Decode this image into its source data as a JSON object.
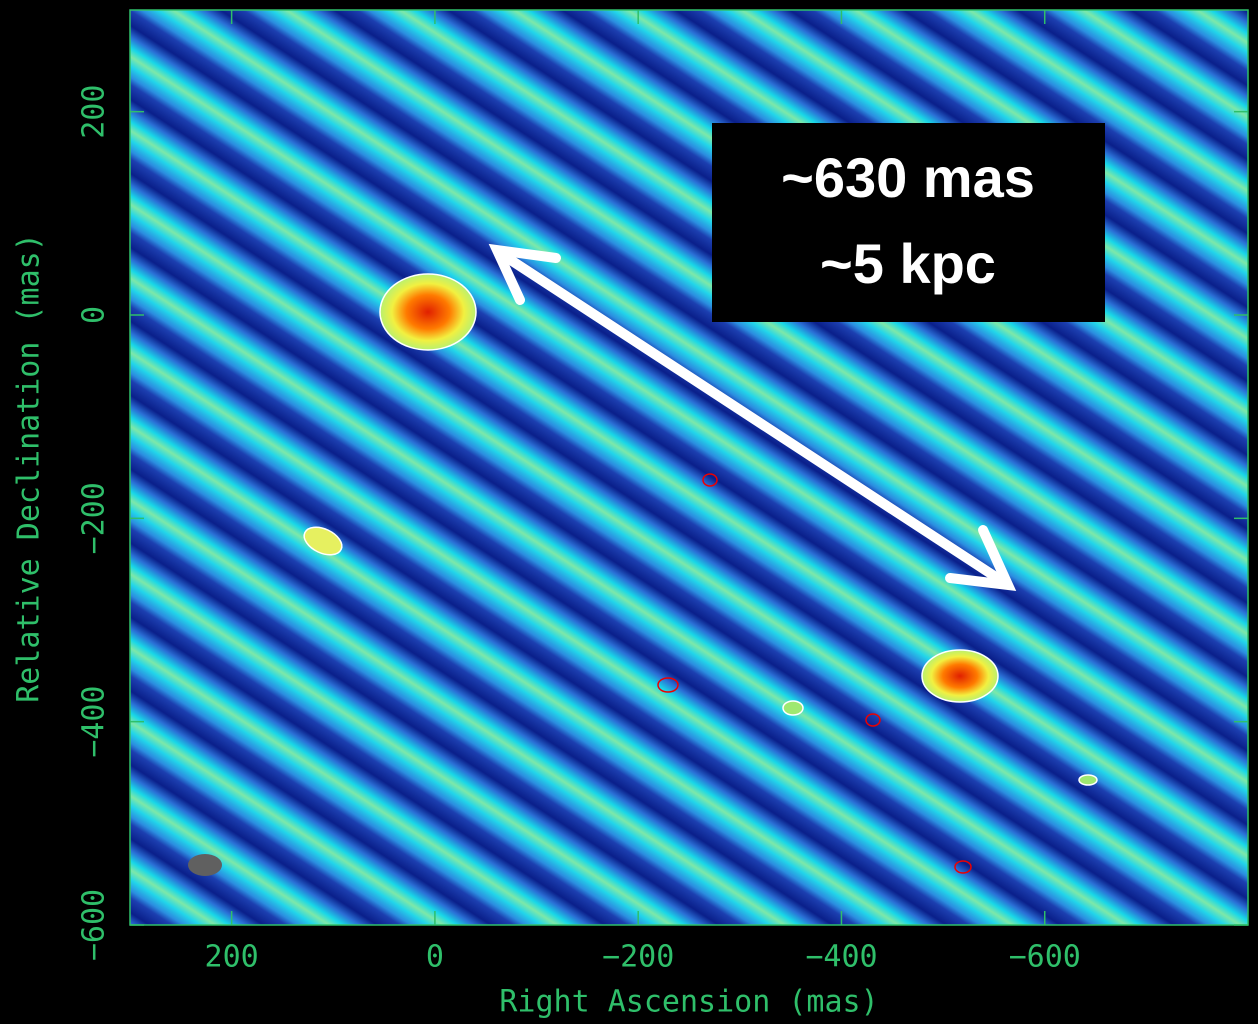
{
  "chart_data": {
    "type": "image",
    "xlabel": "Right Ascension  (mas)",
    "ylabel": "Relative Declination  (mas)",
    "xlim": [
      300,
      -800
    ],
    "ylim": [
      -600,
      300
    ],
    "xticks": [
      {
        "value": 200,
        "label": "200"
      },
      0,
      {
        "value": -200,
        "label": "−200"
      },
      {
        "value": -400,
        "label": "−400"
      },
      {
        "value": -600,
        "label": "−600"
      }
    ],
    "yticks": [
      {
        "value": -600,
        "label": "−600"
      },
      {
        "value": -400,
        "label": "−400"
      },
      {
        "value": -200,
        "label": "−200"
      },
      0,
      {
        "value": 200,
        "label": "200"
      }
    ],
    "annotation": [
      "~630 mas",
      "~5 kpc"
    ],
    "axis_color": "#2fbf6a"
  }
}
